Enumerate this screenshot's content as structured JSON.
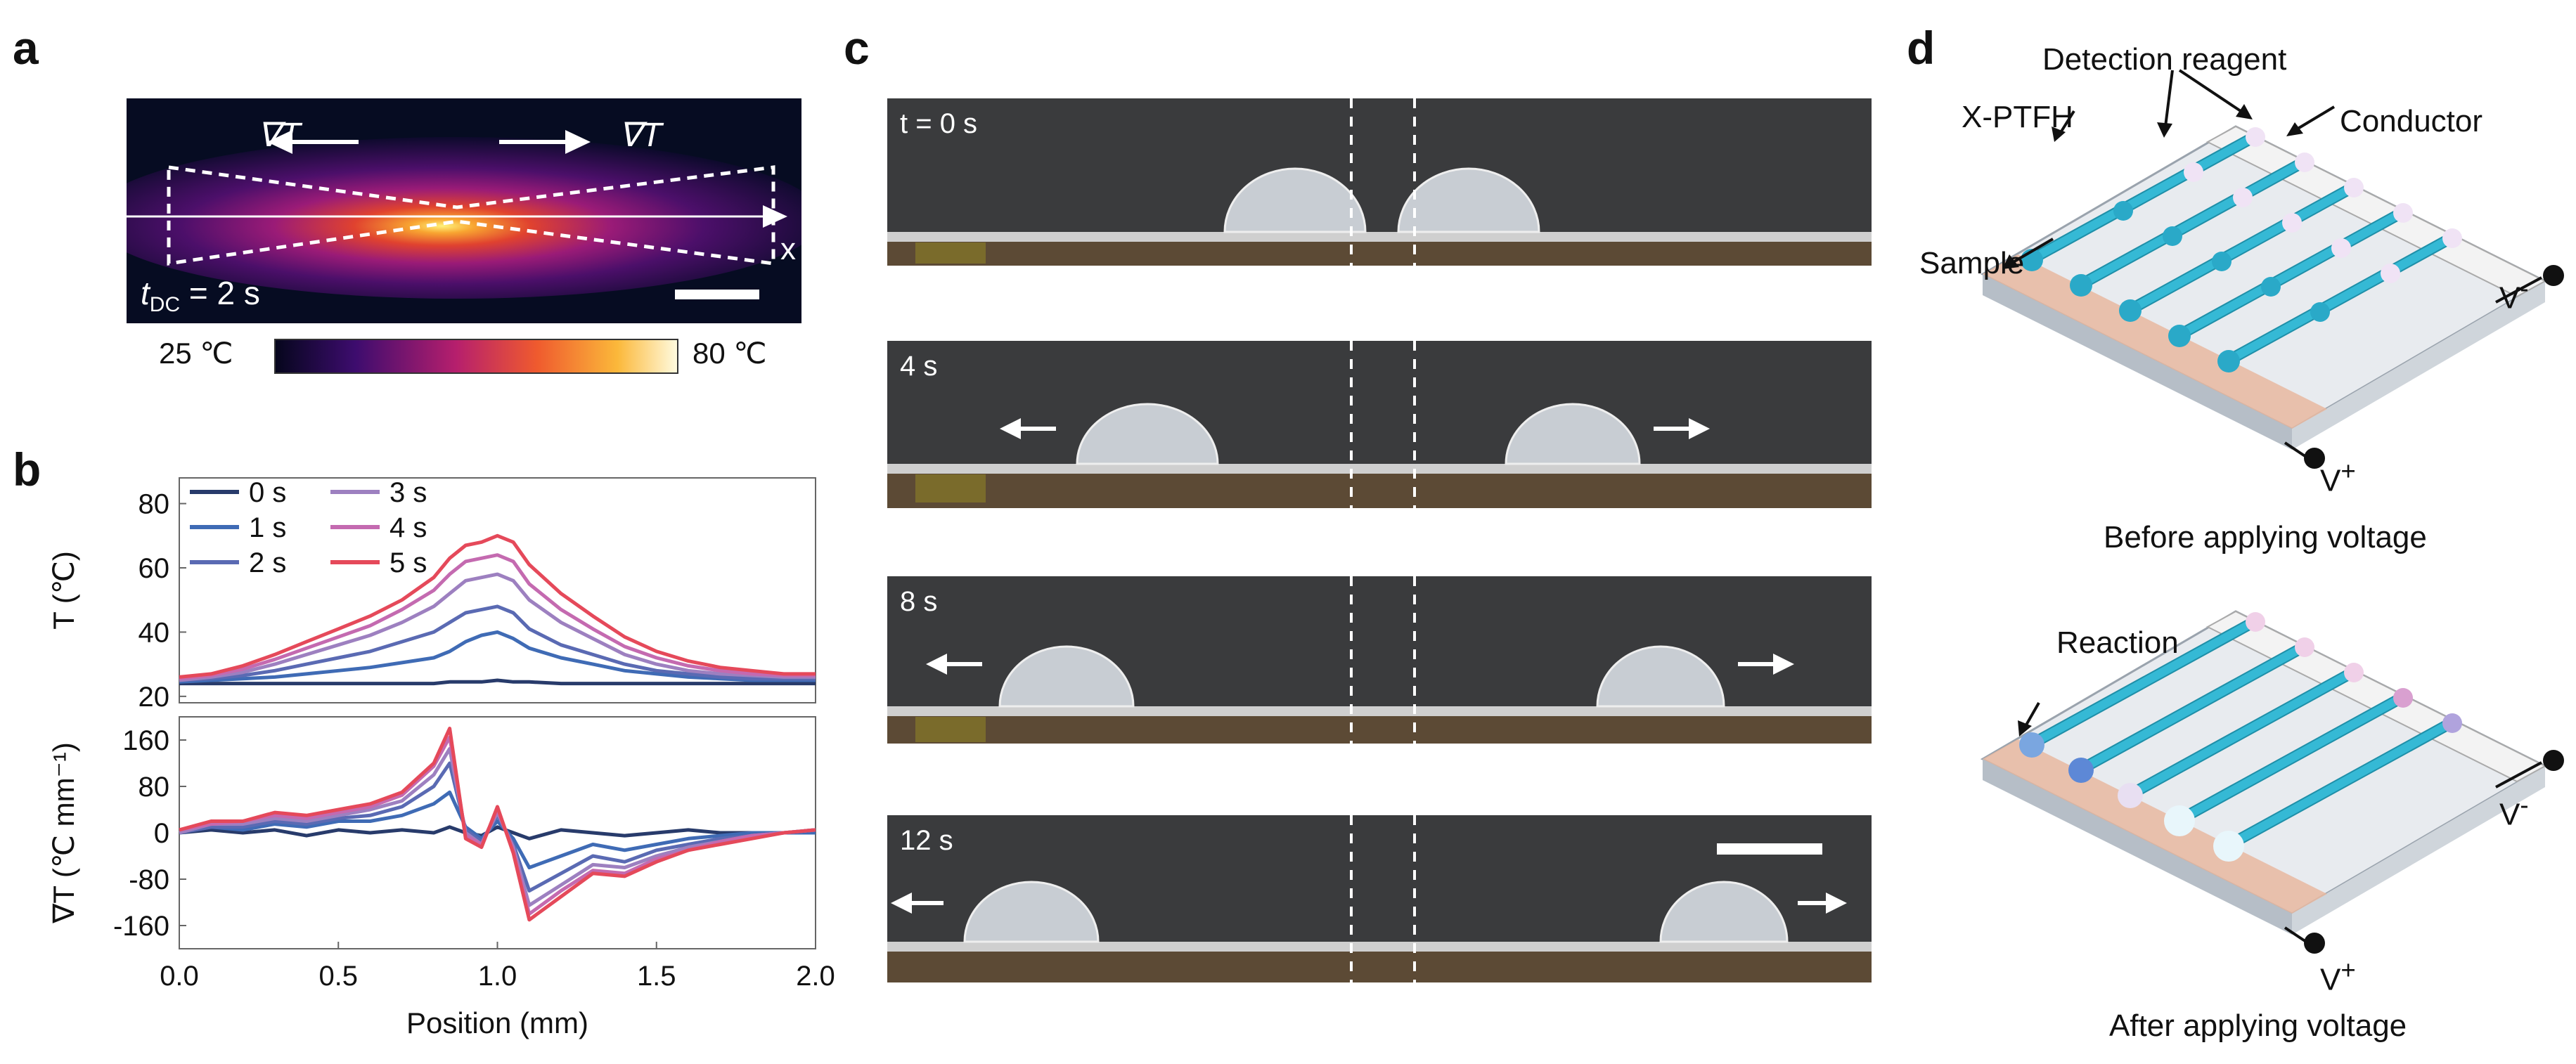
{
  "panel_labels": {
    "a": "a",
    "b": "b",
    "c": "c",
    "d": "d"
  },
  "panel_a": {
    "grad_left": "∇T",
    "grad_right": "∇T",
    "axis_x": "x",
    "time_label_main": "t",
    "time_label_sub": "DC",
    "time_label_value": " = 2 s",
    "colorbar_min": "25 ℃",
    "colorbar_max": "80 ℃"
  },
  "panel_c": {
    "frames": [
      {
        "time": "t = 0 s"
      },
      {
        "time": "4 s"
      },
      {
        "time": "8 s"
      },
      {
        "time": "12 s"
      }
    ]
  },
  "panel_d": {
    "detection_reagent": "Detection reagent",
    "xptfh": "X-PTFH",
    "conductor": "Conductor",
    "sample": "Sample",
    "v_minus_top": "V",
    "v_plus_top": "V",
    "before_caption": "Before applying voltage",
    "reaction": "Reaction",
    "v_minus_bottom": "V",
    "v_plus_bottom": "V",
    "after_caption": "After applying voltage",
    "minus_sign": "-",
    "plus_sign": "+"
  },
  "chart_data": [
    {
      "type": "line",
      "ylabel": "T (℃)",
      "ylim": [
        18,
        88
      ],
      "yticks": [
        20,
        40,
        60,
        80
      ],
      "xlim": [
        0,
        2.0
      ],
      "x": [
        0.0,
        0.1,
        0.2,
        0.3,
        0.4,
        0.5,
        0.6,
        0.7,
        0.8,
        0.85,
        0.9,
        0.95,
        1.0,
        1.05,
        1.1,
        1.2,
        1.3,
        1.4,
        1.5,
        1.6,
        1.7,
        1.8,
        1.9,
        2.0
      ],
      "series": [
        {
          "name": "0 s",
          "color": "#283b6b",
          "values": [
            24,
            24,
            24,
            24,
            24,
            24,
            24,
            24,
            24,
            24.5,
            24.5,
            24.5,
            25,
            24.5,
            24.5,
            24,
            24,
            24,
            24,
            24,
            24,
            24,
            24,
            24
          ]
        },
        {
          "name": "1 s",
          "color": "#3f6bb5",
          "values": [
            24.5,
            25,
            25.5,
            26,
            27,
            28,
            29,
            30.5,
            32,
            34,
            37,
            39,
            40,
            38,
            35,
            32,
            30,
            28,
            27,
            26,
            25.5,
            25,
            25,
            25
          ]
        },
        {
          "name": "2 s",
          "color": "#5a6ab3",
          "values": [
            25,
            25.5,
            26.5,
            28,
            30,
            32,
            34,
            37,
            40,
            43,
            46,
            47,
            48,
            46,
            41,
            36,
            33,
            30,
            28,
            27,
            26,
            25.5,
            25.5,
            25.5
          ]
        },
        {
          "name": "3 s",
          "color": "#9d80c0",
          "values": [
            25,
            26,
            27.5,
            30,
            33,
            36,
            39,
            43,
            48,
            52,
            56,
            57,
            58,
            56,
            50,
            43,
            38,
            33,
            30,
            28,
            27,
            26.5,
            26,
            26
          ]
        },
        {
          "name": "4 s",
          "color": "#c46ab0",
          "values": [
            25.5,
            26.5,
            28.5,
            31.5,
            35,
            38.5,
            42,
            47,
            53,
            58,
            62,
            63,
            64,
            62,
            55,
            47,
            41,
            35.5,
            32,
            29.5,
            28,
            27,
            26.5,
            26.5
          ]
        },
        {
          "name": "5 s",
          "color": "#e5495a",
          "values": [
            26,
            27,
            29.5,
            33,
            37,
            41,
            45,
            50,
            57,
            63,
            67,
            68,
            70,
            68,
            61,
            52,
            45,
            38.5,
            34,
            31,
            29,
            28,
            27,
            27
          ]
        }
      ]
    },
    {
      "type": "line",
      "ylabel": "∇T (℃ mm⁻¹)",
      "xlabel": "Position (mm)",
      "ylim": [
        -200,
        200
      ],
      "yticks": [
        -160,
        -80,
        0,
        80,
        160
      ],
      "xlim": [
        0,
        2.0
      ],
      "xticks": [
        0.0,
        0.5,
        1.0,
        1.5,
        2.0
      ],
      "x": [
        0.0,
        0.1,
        0.2,
        0.3,
        0.4,
        0.5,
        0.6,
        0.7,
        0.8,
        0.85,
        0.9,
        0.95,
        1.0,
        1.05,
        1.1,
        1.2,
        1.3,
        1.4,
        1.5,
        1.6,
        1.7,
        1.8,
        1.9,
        2.0
      ],
      "series": [
        {
          "name": "0 s",
          "color": "#283b6b",
          "values": [
            0,
            5,
            0,
            5,
            -5,
            5,
            0,
            5,
            0,
            10,
            0,
            -5,
            10,
            0,
            -10,
            5,
            0,
            -5,
            0,
            5,
            0,
            0,
            0,
            0
          ]
        },
        {
          "name": "1 s",
          "color": "#3f6bb5",
          "values": [
            0,
            10,
            5,
            15,
            10,
            20,
            20,
            30,
            50,
            70,
            10,
            -10,
            20,
            -10,
            -60,
            -40,
            -20,
            -30,
            -20,
            -10,
            -5,
            0,
            0,
            0
          ]
        },
        {
          "name": "2 s",
          "color": "#5a6ab3",
          "values": [
            0,
            10,
            10,
            20,
            15,
            25,
            30,
            45,
            80,
            120,
            5,
            -15,
            30,
            -20,
            -100,
            -70,
            -40,
            -50,
            -30,
            -20,
            -10,
            -5,
            0,
            5
          ]
        },
        {
          "name": "3 s",
          "color": "#9d80c0",
          "values": [
            0,
            15,
            15,
            25,
            20,
            30,
            40,
            55,
            100,
            145,
            0,
            -20,
            35,
            -25,
            -125,
            -90,
            -55,
            -60,
            -40,
            -25,
            -15,
            -5,
            0,
            5
          ]
        },
        {
          "name": "4 s",
          "color": "#c46ab0",
          "values": [
            5,
            15,
            20,
            30,
            25,
            35,
            45,
            65,
            115,
            165,
            -5,
            -20,
            40,
            -30,
            -140,
            -100,
            -65,
            -70,
            -45,
            -30,
            -15,
            -5,
            0,
            5
          ]
        },
        {
          "name": "5 s",
          "color": "#e5495a",
          "values": [
            5,
            20,
            20,
            35,
            30,
            40,
            50,
            70,
            120,
            180,
            -10,
            -25,
            45,
            -35,
            -150,
            -110,
            -70,
            -75,
            -50,
            -30,
            -20,
            -10,
            0,
            5
          ]
        }
      ]
    }
  ],
  "colors": {
    "photo_bg": "#3a3b3d",
    "channel": "#35b9d5",
    "arrow_red": "#e5495a"
  }
}
